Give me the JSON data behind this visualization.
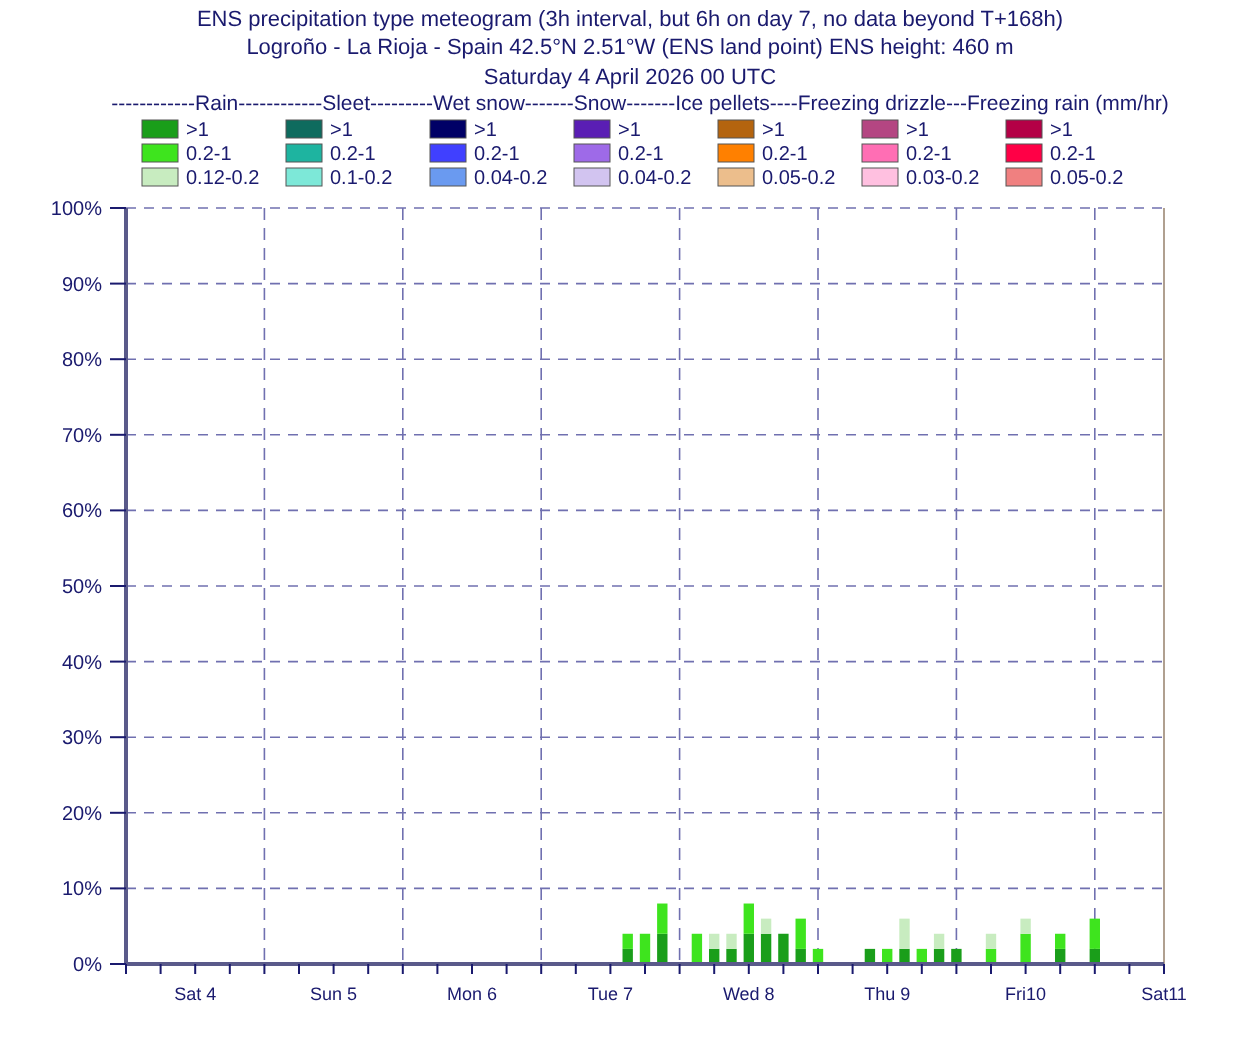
{
  "chart_data": {
    "type": "bar",
    "stacked": true,
    "title": "ENS precipitation type meteogram (3h interval, but 6h on day 7, no data beyond T+168h)",
    "subtitle": "Logroño - La Rioja - Spain 42.5°N 2.51°W (ENS land point) ENS height: 460 m",
    "annotations": [
      "Saturday  4 April 2026 00 UTC"
    ],
    "legend_title": "------------Rain------------Sleet---------Wet snow-------Snow-------Ice pellets----Freezing drizzle---Freezing rain (mm/hr)",
    "legend": "top",
    "grid": "y",
    "x": [
      "2026-04-07T15:00",
      "2026-04-07T18:00",
      "2026-04-07T21:00",
      "2026-04-08T03:00",
      "2026-04-08T06:00",
      "2026-04-08T09:00",
      "2026-04-08T12:00",
      "2026-04-08T15:00",
      "2026-04-08T18:00",
      "2026-04-08T21:00",
      "2026-04-09T00:00",
      "2026-04-09T09:00",
      "2026-04-09T12:00",
      "2026-04-09T15:00",
      "2026-04-09T18:00",
      "2026-04-09T21:00",
      "2026-04-10T00:00",
      "2026-04-10T06:00",
      "2026-04-10T12:00",
      "2026-04-10T18:00",
      "2026-04-11T00:00"
    ],
    "xlim": [
      "2026-04-04T00:00",
      "2026-04-11T12:00"
    ],
    "xticks": [
      {
        "value": "2026-04-04T00:00",
        "label": null
      },
      {
        "value": "2026-04-04T06:00",
        "label": null
      },
      {
        "value": "2026-04-04T12:00",
        "label": "Sat 4"
      },
      {
        "value": "2026-04-04T18:00",
        "label": null
      },
      {
        "value": "2026-04-05T00:00",
        "label": null
      },
      {
        "value": "2026-04-05T06:00",
        "label": null
      },
      {
        "value": "2026-04-05T12:00",
        "label": "Sun 5"
      },
      {
        "value": "2026-04-05T18:00",
        "label": null
      },
      {
        "value": "2026-04-06T00:00",
        "label": null
      },
      {
        "value": "2026-04-06T06:00",
        "label": null
      },
      {
        "value": "2026-04-06T12:00",
        "label": "Mon 6"
      },
      {
        "value": "2026-04-06T18:00",
        "label": null
      },
      {
        "value": "2026-04-07T00:00",
        "label": null
      },
      {
        "value": "2026-04-07T06:00",
        "label": null
      },
      {
        "value": "2026-04-07T12:00",
        "label": "Tue 7"
      },
      {
        "value": "2026-04-07T18:00",
        "label": null
      },
      {
        "value": "2026-04-08T00:00",
        "label": null
      },
      {
        "value": "2026-04-08T06:00",
        "label": null
      },
      {
        "value": "2026-04-08T12:00",
        "label": "Wed 8"
      },
      {
        "value": "2026-04-08T18:00",
        "label": null
      },
      {
        "value": "2026-04-09T00:00",
        "label": null
      },
      {
        "value": "2026-04-09T06:00",
        "label": null
      },
      {
        "value": "2026-04-09T12:00",
        "label": "Thu 9"
      },
      {
        "value": "2026-04-09T18:00",
        "label": null
      },
      {
        "value": "2026-04-10T00:00",
        "label": null
      },
      {
        "value": "2026-04-10T06:00",
        "label": null
      },
      {
        "value": "2026-04-10T12:00",
        "label": "Fri10"
      },
      {
        "value": "2026-04-10T18:00",
        "label": null
      },
      {
        "value": "2026-04-11T00:00",
        "label": null
      },
      {
        "value": "2026-04-11T06:00",
        "label": null
      },
      {
        "value": "2026-04-11T12:00",
        "label": "Sat11"
      }
    ],
    "ylim": [
      0,
      100
    ],
    "yticks": [
      {
        "value": 0,
        "label": "0%"
      },
      {
        "value": 10,
        "label": "10%"
      },
      {
        "value": 20,
        "label": "20%"
      },
      {
        "value": 30,
        "label": "30%"
      },
      {
        "value": 40,
        "label": "40%"
      },
      {
        "value": 50,
        "label": "50%"
      },
      {
        "value": 60,
        "label": "60%"
      },
      {
        "value": 70,
        "label": "70%"
      },
      {
        "value": 80,
        "label": "80%"
      },
      {
        "value": 90,
        "label": "90%"
      },
      {
        "value": 100,
        "label": "100%"
      }
    ],
    "ref_lines": [
      {
        "axis": "x",
        "value": "2026-04-05T00:00",
        "line_style": "dashed",
        "color": "#7070b0"
      },
      {
        "axis": "x",
        "value": "2026-04-06T00:00",
        "line_style": "dashed",
        "color": "#7070b0"
      },
      {
        "axis": "x",
        "value": "2026-04-07T00:00",
        "line_style": "dashed",
        "color": "#7070b0"
      },
      {
        "axis": "x",
        "value": "2026-04-08T00:00",
        "line_style": "dashed",
        "color": "#7070b0"
      },
      {
        "axis": "x",
        "value": "2026-04-09T00:00",
        "line_style": "dashed",
        "color": "#7070b0"
      },
      {
        "axis": "x",
        "value": "2026-04-10T00:00",
        "line_style": "dashed",
        "color": "#7070b0"
      },
      {
        "axis": "x",
        "value": "2026-04-11T00:00",
        "line_style": "dashed",
        "color": "#7070b0"
      }
    ],
    "series": [
      {
        "name": ">1",
        "color": "#1a9e1a",
        "values": [
          2,
          null,
          4,
          null,
          2,
          2,
          4,
          4,
          4,
          2,
          null,
          2,
          null,
          2,
          null,
          2,
          2,
          null,
          null,
          2,
          2
        ]
      },
      {
        "name": "0.2-1",
        "color": "#3ee41e",
        "values": [
          2,
          4,
          4,
          4,
          null,
          null,
          4,
          null,
          null,
          4,
          2,
          null,
          2,
          null,
          2,
          null,
          null,
          2,
          4,
          2,
          4
        ]
      },
      {
        "name": "0.12-0.2",
        "color": "#c8ecc0",
        "values": [
          null,
          null,
          null,
          null,
          2,
          2,
          null,
          2,
          null,
          null,
          null,
          null,
          null,
          4,
          null,
          2,
          null,
          2,
          2,
          null,
          null
        ]
      },
      {
        "name": ">1",
        "color": "#0e6b5e",
        "values": [
          null,
          null,
          null,
          null,
          null,
          null,
          null,
          null,
          null,
          null,
          null,
          null,
          null,
          null,
          null,
          null,
          null,
          null,
          null,
          null,
          null
        ]
      },
      {
        "name": "0.2-1",
        "color": "#1eb4a0",
        "values": [
          null,
          null,
          null,
          null,
          null,
          null,
          null,
          null,
          null,
          null,
          null,
          null,
          null,
          null,
          null,
          null,
          null,
          null,
          null,
          null,
          null
        ]
      },
      {
        "name": "0.1-0.2",
        "color": "#7de8d8",
        "values": [
          null,
          null,
          null,
          null,
          null,
          null,
          null,
          null,
          null,
          null,
          null,
          null,
          null,
          null,
          null,
          null,
          null,
          null,
          null,
          null,
          null
        ]
      },
      {
        "name": ">1",
        "color": "#000066",
        "values": [
          null,
          null,
          null,
          null,
          null,
          null,
          null,
          null,
          null,
          null,
          null,
          null,
          null,
          null,
          null,
          null,
          null,
          null,
          null,
          null,
          null
        ]
      },
      {
        "name": "0.2-1",
        "color": "#4040ff",
        "values": [
          null,
          null,
          null,
          null,
          null,
          null,
          null,
          null,
          null,
          null,
          null,
          null,
          null,
          null,
          null,
          null,
          null,
          null,
          null,
          null,
          null
        ]
      },
      {
        "name": "0.04-0.2",
        "color": "#6a9af0",
        "values": [
          null,
          null,
          null,
          null,
          null,
          null,
          null,
          null,
          null,
          null,
          null,
          null,
          null,
          null,
          null,
          null,
          null,
          null,
          null,
          null,
          null
        ]
      },
      {
        "name": ">1",
        "color": "#5a1eb4",
        "values": [
          null,
          null,
          null,
          null,
          null,
          null,
          null,
          null,
          null,
          null,
          null,
          null,
          null,
          null,
          null,
          null,
          null,
          null,
          null,
          null,
          null
        ]
      },
      {
        "name": "0.2-1",
        "color": "#9e6ae8",
        "values": [
          null,
          null,
          null,
          null,
          null,
          null,
          null,
          null,
          null,
          null,
          null,
          null,
          null,
          null,
          null,
          null,
          null,
          null,
          null,
          null,
          null
        ]
      },
      {
        "name": "0.04-0.2",
        "color": "#d2c4f0",
        "values": [
          null,
          null,
          null,
          null,
          null,
          null,
          null,
          null,
          null,
          null,
          null,
          null,
          null,
          null,
          null,
          null,
          null,
          null,
          null,
          null,
          null
        ]
      },
      {
        "name": ">1",
        "color": "#b4640e",
        "values": [
          null,
          null,
          null,
          null,
          null,
          null,
          null,
          null,
          null,
          null,
          null,
          null,
          null,
          null,
          null,
          null,
          null,
          null,
          null,
          null,
          null
        ]
      },
      {
        "name": "0.2-1",
        "color": "#ff8000",
        "values": [
          null,
          null,
          null,
          null,
          null,
          null,
          null,
          null,
          null,
          null,
          null,
          null,
          null,
          null,
          null,
          null,
          null,
          null,
          null,
          null,
          null
        ]
      },
      {
        "name": "0.05-0.2",
        "color": "#ecbe8c",
        "values": [
          null,
          null,
          null,
          null,
          null,
          null,
          null,
          null,
          null,
          null,
          null,
          null,
          null,
          null,
          null,
          null,
          null,
          null,
          null,
          null,
          null
        ]
      },
      {
        "name": ">1",
        "color": "#b44682",
        "values": [
          null,
          null,
          null,
          null,
          null,
          null,
          null,
          null,
          null,
          null,
          null,
          null,
          null,
          null,
          null,
          null,
          null,
          null,
          null,
          null,
          null
        ]
      },
      {
        "name": "0.2-1",
        "color": "#ff6eb4",
        "values": [
          null,
          null,
          null,
          null,
          null,
          null,
          null,
          null,
          null,
          null,
          null,
          null,
          null,
          null,
          null,
          null,
          null,
          null,
          null,
          null,
          null
        ]
      },
      {
        "name": "0.03-0.2",
        "color": "#ffc0e0",
        "values": [
          null,
          null,
          null,
          null,
          null,
          null,
          null,
          null,
          null,
          null,
          null,
          null,
          null,
          null,
          null,
          null,
          null,
          null,
          null,
          null,
          null
        ]
      },
      {
        "name": ">1",
        "color": "#b40046",
        "values": [
          null,
          null,
          null,
          null,
          null,
          null,
          null,
          null,
          null,
          null,
          null,
          null,
          null,
          null,
          null,
          null,
          null,
          null,
          null,
          null,
          null
        ]
      },
      {
        "name": "0.2-1",
        "color": "#ff0046",
        "values": [
          null,
          null,
          null,
          null,
          null,
          null,
          null,
          null,
          null,
          null,
          null,
          null,
          null,
          null,
          null,
          null,
          null,
          null,
          null,
          null,
          null
        ]
      },
      {
        "name": "0.05-0.2",
        "color": "#f08080",
        "values": [
          null,
          null,
          null,
          null,
          null,
          null,
          null,
          null,
          null,
          null,
          null,
          null,
          null,
          null,
          null,
          null,
          null,
          null,
          null,
          null,
          null
        ]
      }
    ]
  }
}
